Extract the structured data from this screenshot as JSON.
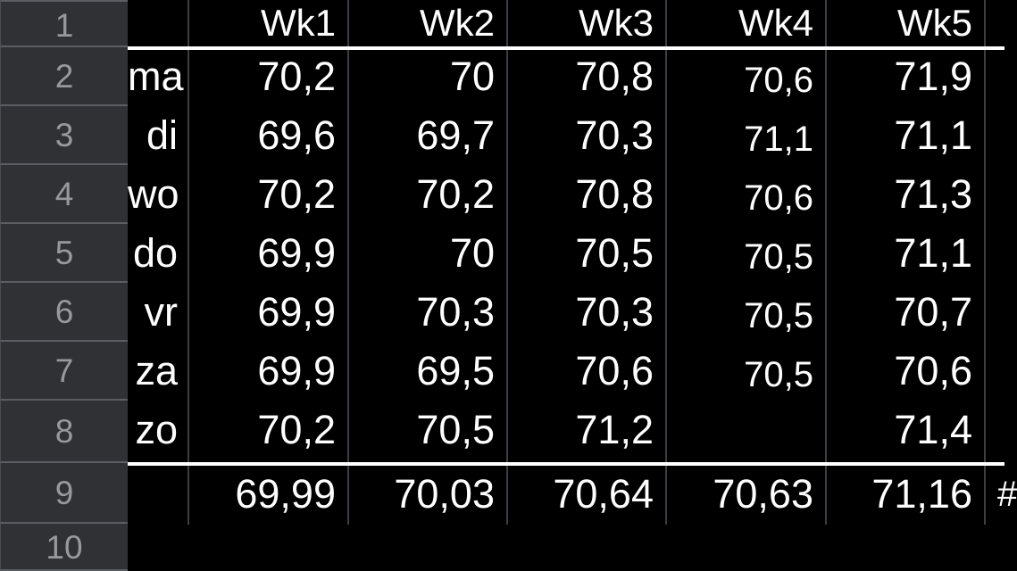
{
  "sheet": {
    "row_numbers": [
      "1",
      "2",
      "3",
      "4",
      "5",
      "6",
      "7",
      "8",
      "9",
      "10"
    ],
    "column_headers": [
      "Wk1",
      "Wk2",
      "Wk3",
      "Wk4",
      "Wk5"
    ],
    "rows": [
      {
        "label": "ma",
        "values": [
          "70,2",
          "70",
          "70,8",
          "70,6",
          "71,9"
        ]
      },
      {
        "label": "di",
        "values": [
          "69,6",
          "69,7",
          "70,3",
          "71,1",
          "71,1"
        ]
      },
      {
        "label": "wo",
        "values": [
          "70,2",
          "70,2",
          "70,8",
          "70,6",
          "71,3"
        ]
      },
      {
        "label": "do",
        "values": [
          "69,9",
          "70",
          "70,5",
          "70,5",
          "71,1"
        ]
      },
      {
        "label": "vr",
        "values": [
          "69,9",
          "70,3",
          "70,3",
          "70,5",
          "70,7"
        ]
      },
      {
        "label": "za",
        "values": [
          "69,9",
          "69,5",
          "70,6",
          "70,5",
          "70,6"
        ]
      },
      {
        "label": "zo",
        "values": [
          "70,2",
          "70,5",
          "71,2",
          "",
          "71,4"
        ]
      }
    ],
    "summary_row": {
      "label": "",
      "values": [
        "69,99",
        "70,03",
        "70,64",
        "70,63",
        "71,16"
      ],
      "overflow_glyph": "#"
    }
  },
  "colors": {
    "background": "#000000",
    "row_header_fill": "#2f3134",
    "row_header_border": "#5a5d61",
    "row_header_text": "#97999d",
    "cell_text": "#ffffff",
    "gridline": "#3b3e42",
    "strong_border": "#ffffff"
  }
}
